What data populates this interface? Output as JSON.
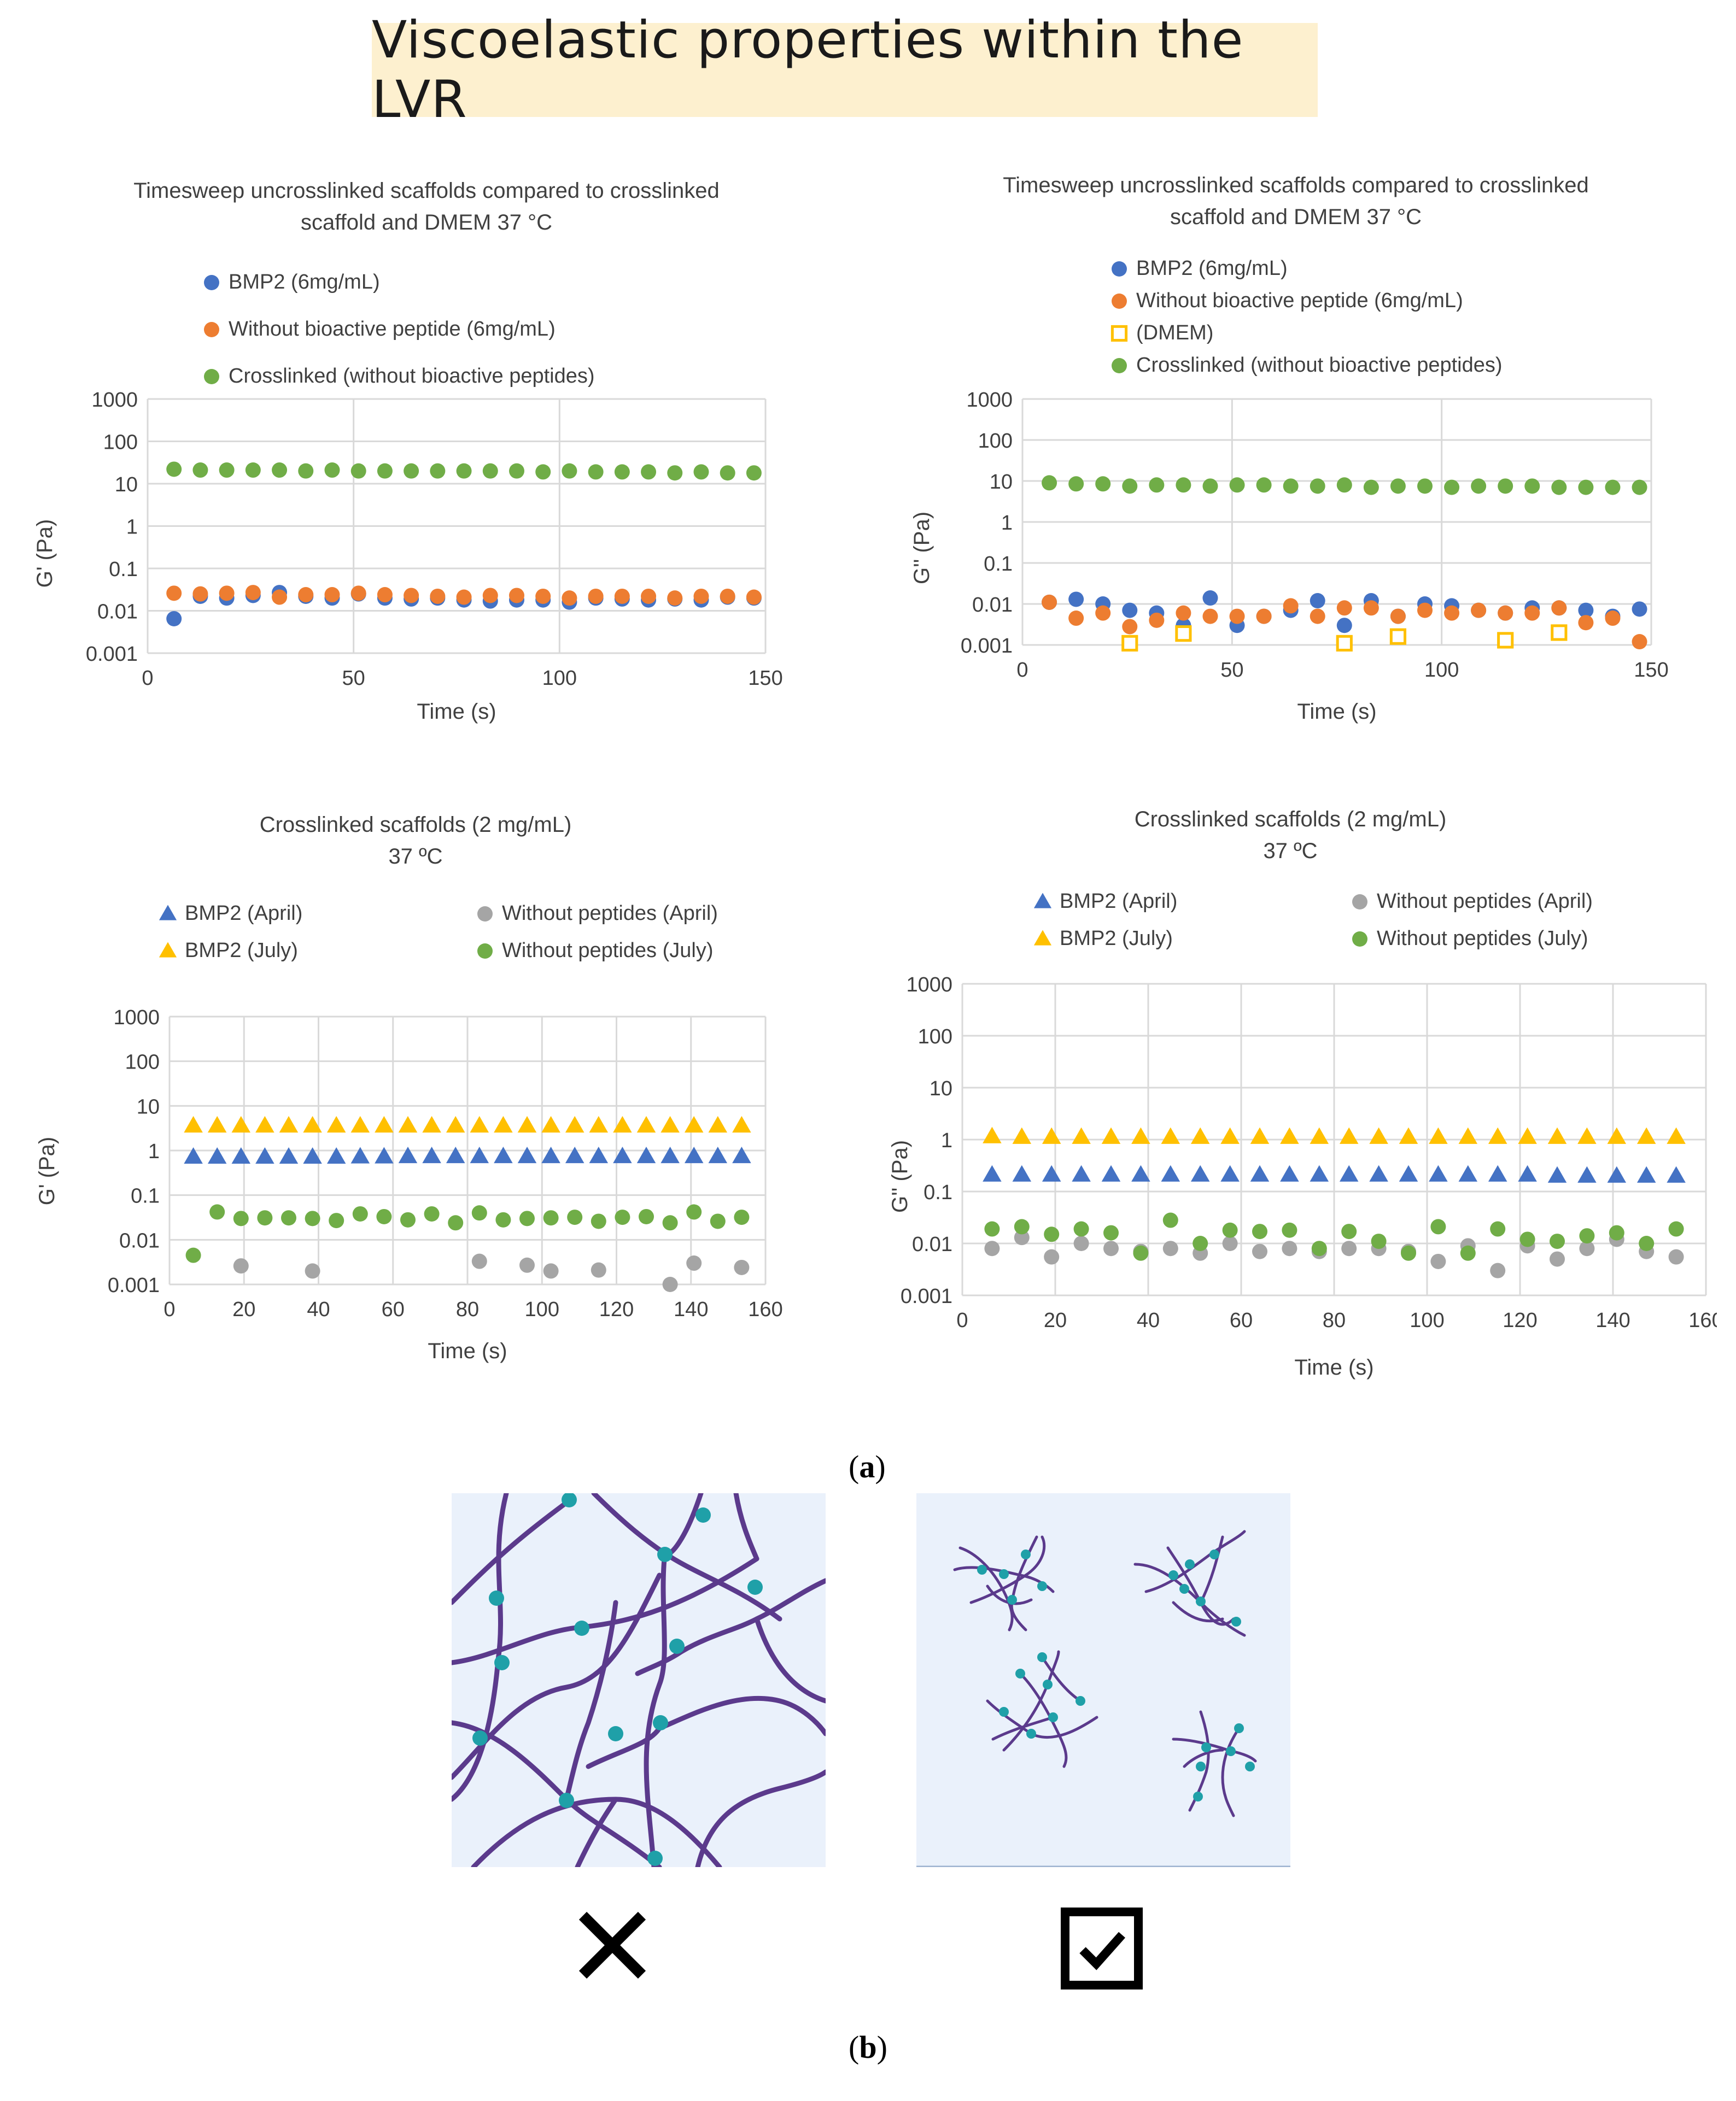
{
  "banner": {
    "title": "Viscoelastic properties within the LVR"
  },
  "panel_labels": {
    "a": "a",
    "b": "b"
  },
  "colors": {
    "blue": "#4472c4",
    "orange": "#ed7d31",
    "green": "#70ad47",
    "yellow": "#ffc000",
    "grey": "#a5a5a5",
    "net_line": "#5b3a8c",
    "node": "#1fa0a8",
    "net_bg": "#eaf1fb"
  },
  "chart_data": [
    {
      "id": "c1",
      "type": "scatter",
      "yscale": "log",
      "title": [
        "Timesweep uncrosslinked scaffolds compared to crosslinked",
        "scaffold and DMEM 37 °C"
      ],
      "xlabel": "Time (s)",
      "ylabel": "G' (Pa)",
      "xlim": [
        0,
        150
      ],
      "xticks": [
        0,
        50,
        100,
        150
      ],
      "ylim": [
        0.001,
        1000
      ],
      "yticks": [
        0.001,
        0.01,
        0.1,
        1,
        10,
        100,
        1000
      ],
      "ytick_labels": [
        "0.001",
        "0.01",
        "0.1",
        "1",
        "10",
        "100",
        "1000"
      ],
      "x": [
        6.4,
        12.8,
        19.2,
        25.6,
        32,
        38.4,
        44.8,
        51.2,
        57.6,
        64,
        70.4,
        76.8,
        83.2,
        89.6,
        96,
        102.4,
        108.8,
        115.2,
        121.6,
        128,
        134.4,
        140.8,
        147.2
      ],
      "series": [
        {
          "name": "BMP2 (6mg/mL)",
          "marker": "circle",
          "color": "#4472c4",
          "values": [
            0.0065,
            0.022,
            0.02,
            0.023,
            0.027,
            0.022,
            0.02,
            0.025,
            0.02,
            0.019,
            0.02,
            0.018,
            0.017,
            0.018,
            0.018,
            0.016,
            0.02,
            0.019,
            0.018,
            0.019,
            0.018,
            0.021,
            0.02
          ]
        },
        {
          "name": "Without bioactive peptide (6mg/mL)",
          "marker": "circle",
          "color": "#ed7d31",
          "values": [
            0.026,
            0.025,
            0.026,
            0.027,
            0.021,
            0.024,
            0.024,
            0.026,
            0.024,
            0.023,
            0.022,
            0.021,
            0.023,
            0.023,
            0.022,
            0.02,
            0.022,
            0.022,
            0.022,
            0.02,
            0.022,
            0.022,
            0.021
          ]
        },
        {
          "name": "Crosslinked (without bioactive peptides)",
          "marker": "circle",
          "color": "#70ad47",
          "values": [
            22,
            21,
            21,
            21,
            21,
            20,
            21,
            20,
            20,
            20,
            20,
            20,
            20,
            20,
            19,
            20,
            19,
            19,
            19,
            18,
            19,
            18,
            18
          ]
        }
      ]
    },
    {
      "id": "c2",
      "type": "scatter",
      "yscale": "log",
      "title": [
        "Timesweep uncrosslinked scaffolds compared to crosslinked",
        "scaffold and DMEM 37 °C"
      ],
      "xlabel": "Time (s)",
      "ylabel": "G'' (Pa)",
      "xlim": [
        0,
        150
      ],
      "xticks": [
        0,
        50,
        100,
        150
      ],
      "ylim": [
        0.001,
        1000
      ],
      "yticks": [
        0.001,
        0.01,
        0.1,
        1,
        10,
        100,
        1000
      ],
      "ytick_labels": [
        "0.001",
        "0.01",
        "0.1",
        "1",
        "10",
        "100",
        "1000"
      ],
      "x": [
        6.4,
        12.8,
        19.2,
        25.6,
        32,
        38.4,
        44.8,
        51.2,
        57.6,
        64,
        70.4,
        76.8,
        83.2,
        89.6,
        96,
        102.4,
        108.8,
        115.2,
        121.6,
        128,
        134.4,
        140.8,
        147.2
      ],
      "series": [
        {
          "name": "BMP2 (6mg/mL)",
          "marker": "circle",
          "color": "#4472c4",
          "values": [
            0.011,
            0.013,
            0.01,
            0.007,
            0.006,
            0.003,
            0.014,
            0.003,
            0.005,
            0.007,
            0.012,
            0.003,
            0.012,
            0.005,
            0.01,
            0.009,
            0.007,
            0.006,
            0.008,
            0.008,
            0.007,
            0.005,
            0.0075
          ]
        },
        {
          "name": "Without bioactive peptide (6mg/mL)",
          "marker": "circle",
          "color": "#ed7d31",
          "values": [
            0.011,
            0.0045,
            0.006,
            0.0028,
            0.004,
            0.006,
            0.005,
            0.005,
            0.005,
            0.009,
            0.005,
            0.008,
            0.008,
            0.005,
            0.007,
            0.006,
            0.007,
            0.006,
            0.006,
            0.008,
            0.0035,
            0.0045,
            0.0012
          ]
        },
        {
          "name": "(DMEM)",
          "marker": "square-open",
          "color": "#ffc000",
          "x": [
            25.6,
            38.4,
            76.8,
            89.6,
            115.2,
            128
          ],
          "values": [
            0.0011,
            0.0019,
            0.0011,
            0.0016,
            0.0013,
            0.002
          ]
        },
        {
          "name": "Crosslinked (without bioactive peptides)",
          "marker": "circle",
          "color": "#70ad47",
          "values": [
            9,
            8.5,
            8.5,
            7.5,
            8,
            8,
            7.5,
            8,
            8,
            7.5,
            7.5,
            8,
            7,
            7.5,
            7.5,
            7,
            7.5,
            7.5,
            7.5,
            7,
            7,
            7,
            7
          ]
        }
      ]
    },
    {
      "id": "c3",
      "type": "scatter",
      "yscale": "log",
      "title": [
        "Crosslinked scaffolds (2 mg/mL)",
        "37 ºC"
      ],
      "xlabel": "Time (s)",
      "ylabel": "G' (Pa)",
      "xlim": [
        0,
        160
      ],
      "xticks": [
        0,
        20,
        40,
        60,
        80,
        100,
        120,
        140,
        160
      ],
      "ylim": [
        0.001,
        1000
      ],
      "yticks": [
        0.001,
        0.01,
        0.1,
        1,
        10,
        100,
        1000
      ],
      "ytick_labels": [
        "0.001",
        "0.01",
        "0.1",
        "1",
        "10",
        "100",
        "1000"
      ],
      "x": [
        6.4,
        12.8,
        19.2,
        25.6,
        32,
        38.4,
        44.8,
        51.2,
        57.6,
        64,
        70.4,
        76.8,
        83.2,
        89.6,
        96,
        102.4,
        108.8,
        115.2,
        121.6,
        128,
        134.4,
        140.8,
        147.2,
        153.6
      ],
      "series": [
        {
          "name": "BMP2 (April)",
          "marker": "triangle",
          "color": "#4472c4",
          "values": [
            0.72,
            0.72,
            0.72,
            0.72,
            0.72,
            0.72,
            0.72,
            0.73,
            0.73,
            0.74,
            0.74,
            0.74,
            0.74,
            0.74,
            0.74,
            0.74,
            0.74,
            0.74,
            0.74,
            0.74,
            0.74,
            0.74,
            0.74,
            0.74
          ]
        },
        {
          "name": "BMP2 (July)",
          "marker": "triangle",
          "color": "#ffc000",
          "values": [
            3.6,
            3.6,
            3.6,
            3.6,
            3.6,
            3.6,
            3.6,
            3.6,
            3.6,
            3.6,
            3.6,
            3.6,
            3.6,
            3.6,
            3.6,
            3.6,
            3.6,
            3.6,
            3.6,
            3.6,
            3.6,
            3.6,
            3.6,
            3.6
          ]
        },
        {
          "name": "Without peptides (April)",
          "marker": "circle",
          "color": "#a5a5a5",
          "x": [
            19.2,
            38.4,
            83.2,
            96,
            102.4,
            115.2,
            134.4,
            140.8,
            153.6
          ],
          "values": [
            0.0026,
            0.002,
            0.0033,
            0.0027,
            0.002,
            0.0021,
            0.001,
            0.003,
            0.0024
          ]
        },
        {
          "name": "Without peptides (July)",
          "marker": "circle",
          "color": "#70ad47",
          "values": [
            0.0045,
            0.042,
            0.03,
            0.031,
            0.031,
            0.03,
            0.027,
            0.038,
            0.033,
            0.028,
            0.038,
            0.024,
            0.04,
            0.028,
            0.03,
            0.031,
            0.032,
            0.026,
            0.032,
            0.033,
            0.024,
            0.042,
            0.026,
            0.032
          ]
        }
      ]
    },
    {
      "id": "c4",
      "type": "scatter",
      "yscale": "log",
      "title": [
        "Crosslinked scaffolds (2 mg/mL)",
        "37 ºC"
      ],
      "xlabel": "Time (s)",
      "ylabel": "G'' (Pa)",
      "xlim": [
        0,
        160
      ],
      "xticks": [
        0,
        20,
        40,
        60,
        80,
        100,
        120,
        140,
        160
      ],
      "ylim": [
        0.001,
        1000
      ],
      "yticks": [
        0.001,
        0.01,
        0.1,
        1,
        10,
        100,
        1000
      ],
      "ytick_labels": [
        "0.001",
        "0.01",
        "0.1",
        "1",
        "10",
        "100",
        "1000"
      ],
      "x": [
        6.4,
        12.8,
        19.2,
        25.6,
        32,
        38.4,
        44.8,
        51.2,
        57.6,
        64,
        70.4,
        76.8,
        83.2,
        89.6,
        96,
        102.4,
        108.8,
        115.2,
        121.6,
        128,
        134.4,
        140.8,
        147.2,
        153.6
      ],
      "series": [
        {
          "name": "BMP2 (April)",
          "marker": "triangle",
          "color": "#4472c4",
          "values": [
            0.21,
            0.21,
            0.21,
            0.21,
            0.21,
            0.21,
            0.21,
            0.21,
            0.21,
            0.21,
            0.21,
            0.21,
            0.21,
            0.21,
            0.21,
            0.21,
            0.21,
            0.21,
            0.21,
            0.2,
            0.2,
            0.2,
            0.2,
            0.2
          ]
        },
        {
          "name": "BMP2 (July)",
          "marker": "triangle",
          "color": "#ffc000",
          "values": [
            1.15,
            1.12,
            1.12,
            1.12,
            1.12,
            1.12,
            1.12,
            1.12,
            1.12,
            1.12,
            1.12,
            1.12,
            1.12,
            1.12,
            1.12,
            1.12,
            1.12,
            1.12,
            1.12,
            1.12,
            1.12,
            1.12,
            1.12,
            1.12
          ]
        },
        {
          "name": "Without peptides (April)",
          "marker": "circle",
          "color": "#a5a5a5",
          "values": [
            0.008,
            0.013,
            0.0055,
            0.01,
            0.008,
            0.007,
            0.008,
            0.0065,
            0.01,
            0.007,
            0.008,
            0.007,
            0.008,
            0.008,
            0.007,
            0.0045,
            0.009,
            0.003,
            0.009,
            0.005,
            0.008,
            0.012,
            0.007,
            0.0055
          ]
        },
        {
          "name": "Without peptides (July)",
          "marker": "circle",
          "color": "#70ad47",
          "values": [
            0.019,
            0.021,
            0.015,
            0.019,
            0.016,
            0.0065,
            0.028,
            0.01,
            0.018,
            0.017,
            0.018,
            0.008,
            0.017,
            0.011,
            0.0065,
            0.021,
            0.0065,
            0.019,
            0.012,
            0.011,
            0.014,
            0.016,
            0.01,
            0.019
          ]
        }
      ]
    }
  ]
}
